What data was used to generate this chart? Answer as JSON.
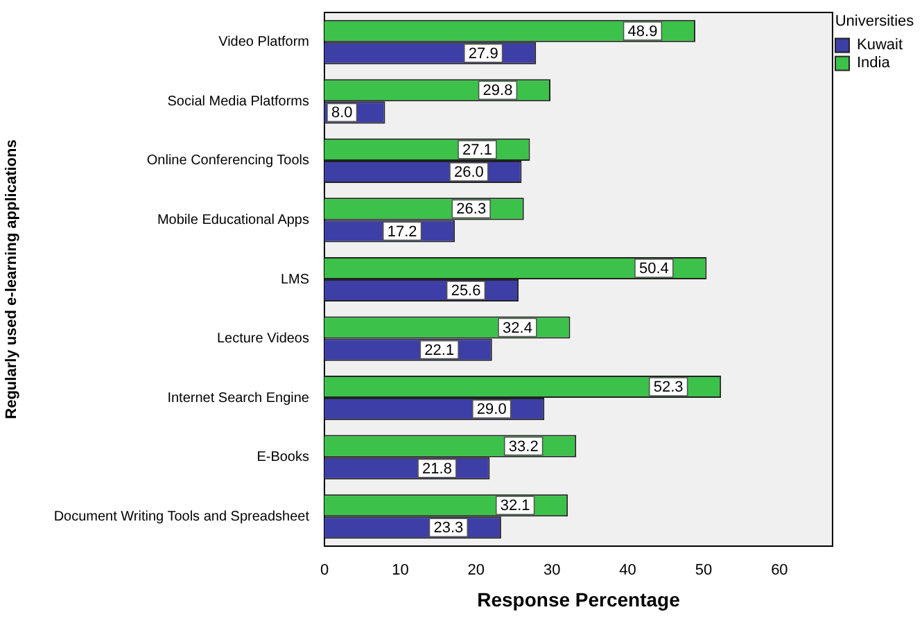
{
  "chart_data": {
    "type": "bar",
    "orientation": "horizontal",
    "xlabel": "Response Percentage",
    "ylabel": "Regularly used e-learning applications",
    "legend_title": "Universities",
    "legend": "top right",
    "categories": [
      "Video Platform",
      "Social Media Platforms",
      "Online Conferencing Tools",
      "Mobile Educational Apps",
      "LMS",
      "Lecture Videos",
      "Internet Search Engine",
      "E-Books",
      "Document Writing Tools and Spreadsheet"
    ],
    "series": [
      {
        "name": "Kuwait",
        "color": "#3d3fa6",
        "values": [
          27.9,
          8.0,
          26.0,
          17.2,
          25.6,
          22.1,
          29.0,
          21.8,
          23.3
        ],
        "value_labels": [
          "27.9",
          "8.0",
          "26.0",
          "17.2",
          "25.6",
          "22.1",
          "29.0",
          "21.8",
          "23.3"
        ]
      },
      {
        "name": "India",
        "color": "#3cc24a",
        "values": [
          48.9,
          29.8,
          27.1,
          26.3,
          50.4,
          32.4,
          52.3,
          33.2,
          32.1
        ],
        "value_labels": [
          "48.9",
          "29.8",
          "27.1",
          "26.3",
          "50.4",
          "32.4",
          "52.3",
          "33.2",
          "32.1"
        ]
      }
    ],
    "xlim": [
      0,
      67
    ],
    "xticks": [
      0,
      10,
      20,
      30,
      40,
      50,
      60
    ],
    "grid": false
  }
}
